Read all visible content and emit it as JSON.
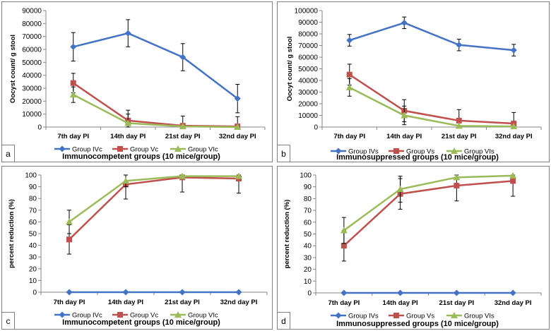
{
  "colors": {
    "blue": "#4472C4",
    "red": "#C0504D",
    "green": "#9BBB59"
  },
  "chart_data": [
    {
      "id": "a",
      "letter": "a",
      "type": "line",
      "categories": [
        "7th day PI",
        "14th day PI",
        "21st day PI",
        "32nd day PI"
      ],
      "ylabel": "Oocyst count/ g stool",
      "xlabel": "Immunocompetent groups (10 mice/group)",
      "ylim": [
        0,
        90000
      ],
      "yticks": [
        0,
        10000,
        20000,
        30000,
        40000,
        50000,
        60000,
        70000,
        80000,
        90000
      ],
      "series": [
        {
          "name": "Group IVc",
          "color": "#4472C4",
          "marker": "diamond",
          "values": [
            62000,
            72500,
            54000,
            22000
          ],
          "errors": [
            11000,
            10500,
            10500,
            11000
          ]
        },
        {
          "name": "Group Vc",
          "color": "#C0504D",
          "marker": "square",
          "values": [
            34000,
            5000,
            1000,
            500
          ],
          "errors": [
            7500,
            8000,
            7500,
            7500
          ]
        },
        {
          "name": "Group VIc",
          "color": "#9BBB59",
          "marker": "triangle",
          "values": [
            25000,
            3000,
            500,
            0
          ],
          "errors": [
            6000,
            7000,
            0,
            0
          ]
        }
      ]
    },
    {
      "id": "b",
      "letter": "b",
      "type": "line",
      "categories": [
        "7th day PI",
        "14th day PI",
        "21st day PI",
        "32nd day PI"
      ],
      "ylabel": "Oocyt count/ g stool",
      "xlabel": "Immunosuppressed groups (10 mice/group)",
      "ylim": [
        0,
        100000
      ],
      "yticks": [
        0,
        10000,
        20000,
        30000,
        40000,
        50000,
        60000,
        70000,
        80000,
        90000,
        100000
      ],
      "series": [
        {
          "name": "Group IVs",
          "color": "#4472C4",
          "marker": "diamond",
          "values": [
            74500,
            89500,
            70500,
            66000
          ],
          "errors": [
            5000,
            5000,
            5000,
            5000
          ]
        },
        {
          "name": "Group Vs",
          "color": "#C0504D",
          "marker": "square",
          "values": [
            45000,
            14000,
            5500,
            3000
          ],
          "errors": [
            9000,
            9500,
            9500,
            9500
          ]
        },
        {
          "name": "Group VIs",
          "color": "#9BBB59",
          "marker": "triangle",
          "values": [
            34000,
            10000,
            1000,
            500
          ],
          "errors": [
            7500,
            8000,
            0,
            0
          ]
        }
      ]
    },
    {
      "id": "c",
      "letter": "c",
      "type": "line",
      "categories": [
        "7th day PI",
        "14th day PI",
        "21st day PI",
        "32nd day PI"
      ],
      "ylabel": "percent reduction (%)",
      "xlabel": "Immunocompetent groups (10 mice/group)",
      "ylim": [
        0,
        100
      ],
      "yticks": [
        0,
        10,
        20,
        30,
        40,
        50,
        60,
        70,
        80,
        90,
        100
      ],
      "series": [
        {
          "name": "Group IVc",
          "color": "#4472C4",
          "marker": "diamond",
          "values": [
            0,
            0,
            0,
            0
          ],
          "errors": [
            0,
            0,
            0,
            0
          ]
        },
        {
          "name": "Group Vc",
          "color": "#C0504D",
          "marker": "square",
          "values": [
            45,
            92,
            98,
            97
          ],
          "errors": [
            12.5,
            12.5,
            12.5,
            12.5
          ]
        },
        {
          "name": "Group VIc",
          "color": "#9BBB59",
          "marker": "triangle",
          "values": [
            60,
            95,
            99,
            99
          ],
          "errors": [
            10,
            5,
            0,
            0
          ]
        }
      ]
    },
    {
      "id": "d",
      "letter": "d",
      "type": "line",
      "categories": [
        "7th day PI",
        "14th day PI",
        "21st day PI",
        "32nd day PI"
      ],
      "ylabel": "percent reduction (%)",
      "xlabel": "Immunosuppressed groups (10 mice/group)",
      "ylim": [
        0,
        100
      ],
      "yticks": [
        0,
        10,
        20,
        30,
        40,
        50,
        60,
        70,
        80,
        90,
        100
      ],
      "series": [
        {
          "name": "Group IVs",
          "color": "#4472C4",
          "marker": "diamond",
          "values": [
            0,
            0,
            0,
            0
          ],
          "errors": [
            0,
            0,
            0,
            0
          ]
        },
        {
          "name": "Group Vs",
          "color": "#C0504D",
          "marker": "square",
          "values": [
            40,
            84,
            91,
            95
          ],
          "errors": [
            13,
            13,
            13,
            13
          ]
        },
        {
          "name": "Group VIs",
          "color": "#9BBB59",
          "marker": "triangle",
          "values": [
            53,
            88,
            98,
            99.5
          ],
          "errors": [
            11,
            11,
            0,
            0
          ]
        }
      ]
    }
  ]
}
